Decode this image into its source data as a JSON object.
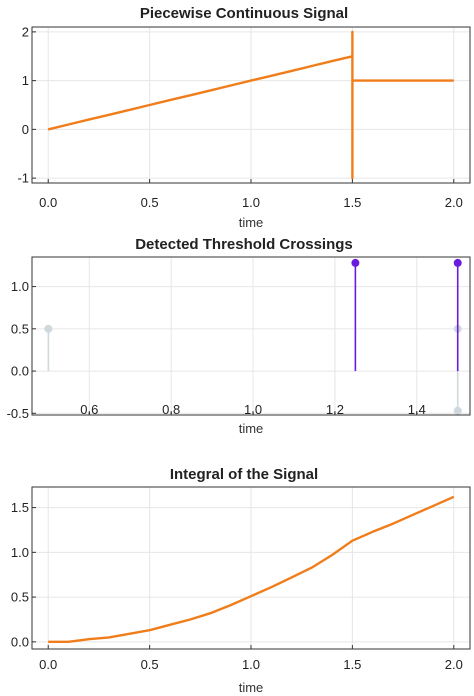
{
  "chart_data": [
    {
      "type": "line",
      "title": "Piecewise Continuous Signal",
      "xlabel": "time",
      "ylabel": "",
      "xlim": [
        -0.08,
        2.08
      ],
      "ylim": [
        -1.1,
        2.1
      ],
      "xticks": [
        0.0,
        0.5,
        1.0,
        1.5,
        2.0
      ],
      "xticklabels": [
        "0.0",
        "0.5",
        "1.0",
        "1.5",
        "2.0"
      ],
      "yticks": [
        -1,
        0,
        1,
        2
      ],
      "yticklabels": [
        "-1",
        "0",
        "1",
        "2"
      ],
      "grid": true,
      "color": "#f07d1a",
      "series": [
        {
          "x": [
            0.0,
            0.1,
            0.2,
            0.3,
            0.4,
            0.5,
            0.6,
            0.7,
            0.8,
            0.9,
            1.0,
            1.1,
            1.2,
            1.3,
            1.4,
            1.5,
            1.5,
            1.5,
            1.5,
            1.6,
            1.7,
            1.8,
            1.9,
            2.0
          ],
          "y": [
            0.0,
            0.1,
            0.2,
            0.3,
            0.4,
            0.5,
            0.6,
            0.7,
            0.8,
            0.9,
            1.0,
            1.1,
            1.2,
            1.3,
            1.4,
            1.5,
            -1.0,
            2.0,
            1.0,
            1.0,
            1.0,
            1.0,
            1.0,
            1.0
          ]
        }
      ]
    },
    {
      "type": "stem",
      "title": "Detected Threshold Crossings",
      "xlabel": "time",
      "ylabel": "",
      "xlim": [
        0.46,
        1.53
      ],
      "ylim": [
        -0.52,
        1.35
      ],
      "xticks": [
        0.6,
        0.8,
        1.0,
        1.2,
        1.4
      ],
      "xticklabels": [
        "0.6",
        "0.8",
        "1.0",
        "1.2",
        "1.4"
      ],
      "yticks": [
        -0.5,
        0.0,
        0.5,
        1.0
      ],
      "yticklabels": [
        "-0.5",
        "0.0",
        "0.5",
        "1.0"
      ],
      "grid": true,
      "series": [
        {
          "color": "#cfd8dc",
          "x": [
            0.5,
            1.5,
            1.5
          ],
          "y": [
            0.5,
            0.5,
            -0.47
          ]
        },
        {
          "color": "#6a1be0",
          "x": [
            1.25,
            1.5
          ],
          "y": [
            1.28,
            1.28
          ]
        }
      ]
    },
    {
      "type": "line",
      "title": "Integral of the Signal",
      "xlabel": "time",
      "ylabel": "",
      "xlim": [
        -0.08,
        2.08
      ],
      "ylim": [
        -0.08,
        1.73
      ],
      "xticks": [
        0.0,
        0.5,
        1.0,
        1.5,
        2.0
      ],
      "xticklabels": [
        "0.0",
        "0.5",
        "1.0",
        "1.5",
        "2.0"
      ],
      "yticks": [
        0.0,
        0.5,
        1.0,
        1.5
      ],
      "yticklabels": [
        "0.0",
        "0.5",
        "1.0",
        "1.5"
      ],
      "grid": true,
      "color": "#f07d1a",
      "series": [
        {
          "x": [
            0.0,
            0.1,
            0.2,
            0.3,
            0.4,
            0.5,
            0.6,
            0.7,
            0.8,
            0.9,
            1.0,
            1.1,
            1.2,
            1.3,
            1.4,
            1.5,
            1.6,
            1.7,
            1.8,
            1.9,
            2.0
          ],
          "y": [
            0.0,
            0.0,
            0.03,
            0.05,
            0.09,
            0.13,
            0.19,
            0.25,
            0.32,
            0.41,
            0.51,
            0.61,
            0.72,
            0.83,
            0.97,
            1.13,
            1.23,
            1.32,
            1.42,
            1.52,
            1.62
          ]
        }
      ]
    }
  ]
}
